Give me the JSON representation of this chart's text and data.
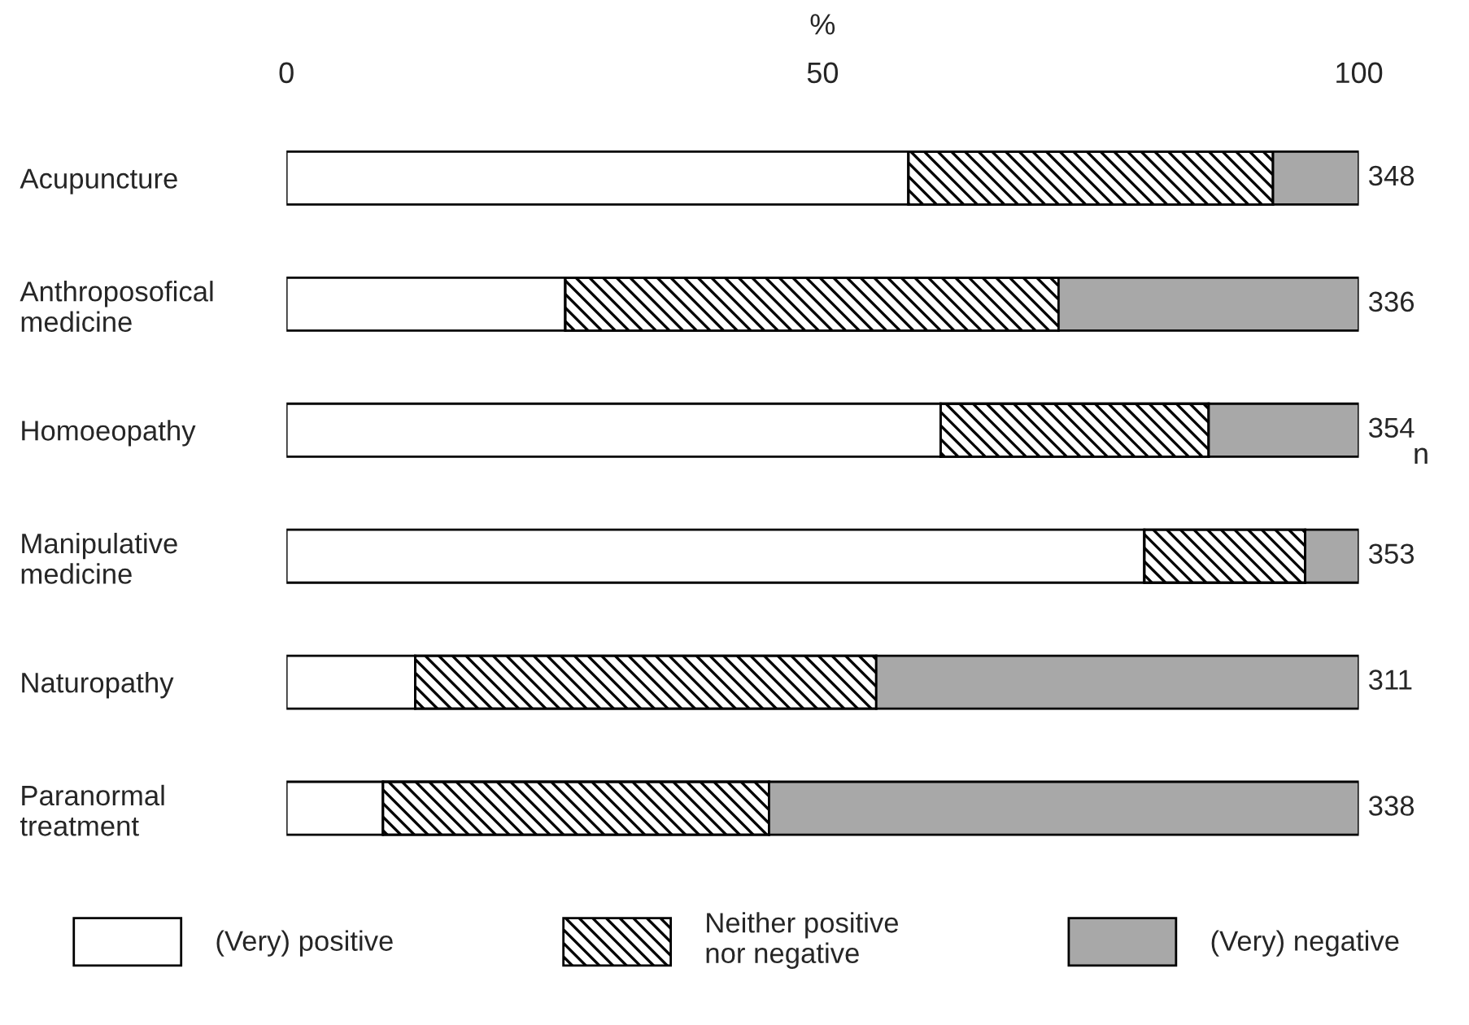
{
  "chart_data": {
    "type": "bar",
    "orientation": "horizontal",
    "stacked": true,
    "xlabel": "%",
    "y2label": "n",
    "categories": [
      "Acupuncture",
      "Anthroposofical\nmedicine",
      "Homoeopathy",
      "Manipulative\nmedicine",
      "Naturopathy",
      "Paranormal\ntreatment"
    ],
    "series": [
      {
        "name": "(Very) positive",
        "color": "#ffffff",
        "values": [
          58,
          26,
          61,
          80,
          12,
          9
        ]
      },
      {
        "name": "Neither positive\nnor negative",
        "color": "#000000",
        "values": [
          34,
          46,
          25,
          15,
          43,
          36
        ]
      },
      {
        "name": "(Very) negative",
        "color": "#a8a8a8",
        "values": [
          8,
          28,
          14,
          5,
          45,
          55
        ]
      }
    ],
    "xlim": [
      0,
      100
    ],
    "xticks": [
      0,
      50,
      100
    ],
    "grid": false,
    "legend": "bottom",
    "annotations": [
      "348",
      "336",
      "354",
      "353",
      "311",
      "338"
    ]
  }
}
